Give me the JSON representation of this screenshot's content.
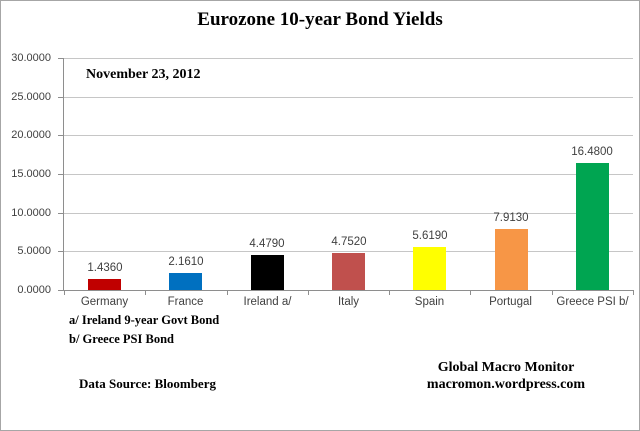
{
  "title": "Eurozone 10-year Bond Yields",
  "date_label": "November 23, 2012",
  "footnotes": {
    "a": "a/  Ireland 9-year Govt Bond",
    "b": "b/  Greece PSI Bond"
  },
  "data_source": "Data Source:  Bloomberg",
  "branding": {
    "line1": "Global Macro Monitor",
    "line2": "macromon.wordpress.com"
  },
  "chart_data": {
    "type": "bar",
    "title": "Eurozone 10-year Bond Yields",
    "subtitle": "November 23, 2012",
    "categories": [
      "Germany",
      "France",
      "Ireland a/",
      "Italy",
      "Spain",
      "Portugal",
      "Greece PSI b/"
    ],
    "values": [
      1.436,
      2.161,
      4.479,
      4.752,
      5.619,
      7.913,
      16.48
    ],
    "value_labels": [
      "1.4360",
      "2.1610",
      "4.4790",
      "4.7520",
      "5.6190",
      "7.9130",
      "16.4800"
    ],
    "bar_colors": [
      "#c00000",
      "#0070c0",
      "#000000",
      "#c0504d",
      "#ffff00",
      "#f79646",
      "#00a551"
    ],
    "xlabel": "",
    "ylabel": "",
    "ylim": [
      0,
      30
    ],
    "ytick_step": 5,
    "ytick_labels": [
      "0.0000",
      "5.0000",
      "10.0000",
      "15.0000",
      "20.0000",
      "25.0000",
      "30.0000"
    ],
    "grid": true,
    "legend": "none",
    "gridline_color": "#c6c6c6",
    "axis_color": "#8e8e8e",
    "label_color": "#3f3f3f"
  }
}
